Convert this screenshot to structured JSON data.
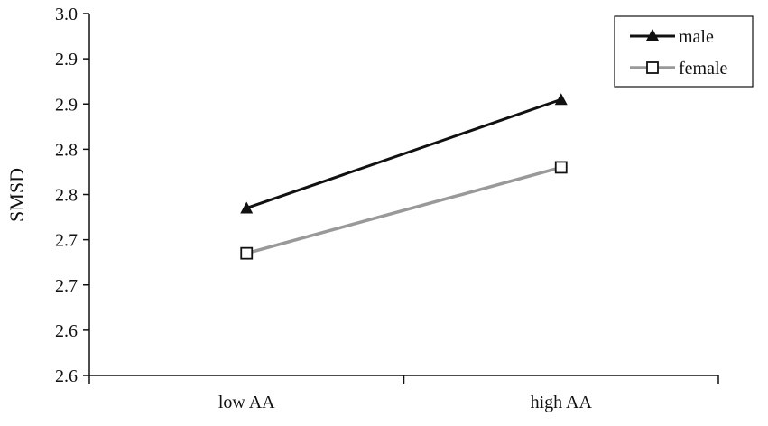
{
  "chart_data": {
    "type": "line",
    "title": "",
    "xlabel": "",
    "ylabel": "SMSD",
    "categories": [
      "low AA",
      "high AA"
    ],
    "y_tick_labels": [
      "2.6",
      "2.6",
      "2.7",
      "2.7",
      "2.8",
      "2.8",
      "2.9",
      "2.9",
      "3.0"
    ],
    "ylim": [
      2.6,
      3.0
    ],
    "grid": false,
    "legend_position": "top-right",
    "series": [
      {
        "name": "male",
        "marker": "triangle",
        "color": "#111111",
        "values": [
          2.785,
          2.905
        ]
      },
      {
        "name": "female",
        "marker": "open-square",
        "color": "#999999",
        "values": [
          2.735,
          2.83
        ]
      }
    ]
  }
}
